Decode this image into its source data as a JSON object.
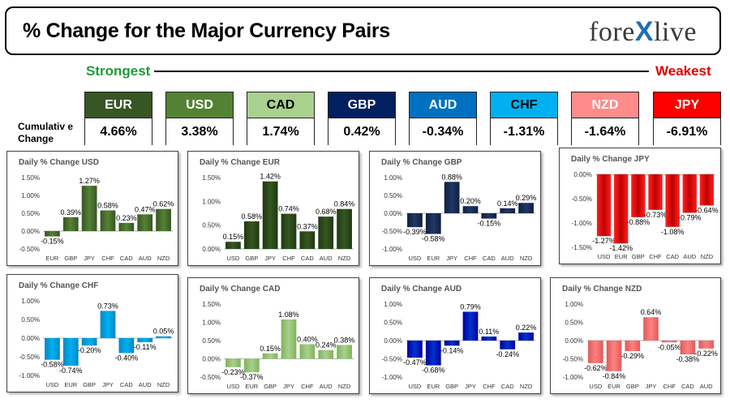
{
  "header": {
    "title": "% Change for the Major Currency Pairs",
    "logo_left": "fore",
    "logo_x": "X",
    "logo_right": "live"
  },
  "ranking": {
    "strongest_label": "Strongest",
    "weakest_label": "Weakest",
    "cumulative_label_line1": "Cumulativ e",
    "cumulative_label_line2": "Change",
    "currencies": [
      {
        "code": "EUR",
        "value": "4.66%",
        "color": "#375623",
        "text_color": "#ffffff"
      },
      {
        "code": "USD",
        "value": "3.38%",
        "color": "#548235",
        "text_color": "#ffffff"
      },
      {
        "code": "CAD",
        "value": "1.74%",
        "color": "#a9d08e",
        "text_color": "#000000"
      },
      {
        "code": "GBP",
        "value": "0.42%",
        "color": "#002060",
        "text_color": "#ffffff"
      },
      {
        "code": "AUD",
        "value": "-0.34%",
        "color": "#0070c0",
        "text_color": "#ffffff"
      },
      {
        "code": "CHF",
        "value": "-1.31%",
        "color": "#00b0f0",
        "text_color": "#000000"
      },
      {
        "code": "NZD",
        "value": "-1.64%",
        "color": "#ff8b8b",
        "text_color": "#ffffff"
      },
      {
        "code": "JPY",
        "value": "-6.91%",
        "color": "#ff0000",
        "text_color": "#ffffff"
      }
    ]
  },
  "chart_data": [
    {
      "type": "bar",
      "title": "Daily % Change USD",
      "categories": [
        "EUR",
        "GBP",
        "JPY",
        "CHF",
        "CAD",
        "AUD",
        "NZD"
      ],
      "values": [
        -0.15,
        0.39,
        1.27,
        0.58,
        0.23,
        0.47,
        0.62
      ],
      "labels": [
        "-0.15%",
        "0.39%",
        "1.27%",
        "0.58%",
        "0.23%",
        "0.47%",
        "0.62%"
      ],
      "ylim": [
        -0.5,
        1.5
      ],
      "ticks": [
        "-0.50%",
        "0.00%",
        "0.50%",
        "1.00%",
        "1.50%"
      ],
      "tick_values": [
        -0.5,
        0,
        0.5,
        1,
        1.5
      ],
      "color": "#548235",
      "color_light": "#375623",
      "color_dark": "#548235",
      "grid": false
    },
    {
      "type": "bar",
      "title": "Daily % Change EUR",
      "categories": [
        "USD",
        "GBP",
        "JPY",
        "CHF",
        "CAD",
        "AUD",
        "NZD"
      ],
      "values": [
        0.15,
        0.58,
        1.42,
        0.74,
        0.37,
        0.68,
        0.84
      ],
      "labels": [
        "0.15%",
        "0.58%",
        "1.42%",
        "0.74%",
        "0.37%",
        "0.68%",
        "0.84%"
      ],
      "ylim": [
        0,
        1.5
      ],
      "ticks": [
        "0.00%",
        "0.50%",
        "1.00%",
        "1.50%"
      ],
      "tick_values": [
        0,
        0.5,
        1,
        1.5
      ],
      "color": "#375623",
      "color_light": "#1e3a10",
      "color_dark": "#375623",
      "grid": false
    },
    {
      "type": "bar",
      "title": "Daily % Change GBP",
      "categories": [
        "USD",
        "EUR",
        "JPY",
        "CHF",
        "CAD",
        "AUD",
        "NZD"
      ],
      "values": [
        -0.39,
        -0.58,
        0.88,
        0.2,
        -0.15,
        0.14,
        0.29
      ],
      "labels": [
        "-0.39%",
        "-0.58%",
        "0.88%",
        "0.20%",
        "-0.15%",
        "0.14%",
        "0.29%"
      ],
      "ylim": [
        -1,
        1
      ],
      "ticks": [
        "-1.00%",
        "-0.50%",
        "0.00%",
        "0.50%",
        "1.00%"
      ],
      "tick_values": [
        -1,
        -0.5,
        0,
        0.5,
        1
      ],
      "color": "#203864",
      "color_light": "#0f1f40",
      "color_dark": "#203864",
      "grid": false
    },
    {
      "type": "bar",
      "title": "Daily % Change JPY",
      "categories": [
        "USD",
        "EUR",
        "GBP",
        "CHF",
        "CAD",
        "AUD",
        "NZD"
      ],
      "values": [
        -1.27,
        -1.42,
        -0.88,
        -0.73,
        -1.08,
        -0.79,
        -0.64
      ],
      "labels": [
        "-1.27%",
        "-1.42%",
        "-0.88%",
        "-0.73%",
        "-1.08%",
        "-0.79%",
        "-0.64%"
      ],
      "ylim": [
        -1.5,
        0
      ],
      "ticks": [
        "-1.50%",
        "-1.00%",
        "-0.50%",
        "0.00%"
      ],
      "tick_values": [
        -1.5,
        -1,
        -0.5,
        0
      ],
      "color": "#e00000",
      "color_light": "#ff2020",
      "color_dark": "#c00000",
      "grid": false
    },
    {
      "type": "bar",
      "title": "Daily % Change CHF",
      "categories": [
        "USD",
        "EUR",
        "GBP",
        "JPY",
        "CAD",
        "AUD",
        "NZD"
      ],
      "values": [
        -0.58,
        -0.74,
        -0.2,
        0.73,
        -0.4,
        -0.11,
        0.05
      ],
      "labels": [
        "-0.58%",
        "-0.74%",
        "-0.20%",
        "0.73%",
        "-0.40%",
        "-0.11%",
        "0.05%"
      ],
      "ylim": [
        -1,
        1
      ],
      "ticks": [
        "-1.00%",
        "-0.50%",
        "0.00%",
        "0.50%",
        "1.00%"
      ],
      "tick_values": [
        -1,
        -0.5,
        0,
        0.5,
        1
      ],
      "color": "#00b0f0",
      "color_light": "#0088c8",
      "color_dark": "#00b0f0",
      "grid": false
    },
    {
      "type": "bar",
      "title": "Daily % Change CAD",
      "categories": [
        "USD",
        "EUR",
        "GBP",
        "JPY",
        "CHF",
        "AUD",
        "NZD"
      ],
      "values": [
        -0.23,
        -0.37,
        0.15,
        1.08,
        0.4,
        0.24,
        0.38
      ],
      "labels": [
        "-0.23%",
        "-0.37%",
        "0.15%",
        "1.08%",
        "0.40%",
        "0.24%",
        "0.38%"
      ],
      "ylim": [
        -0.5,
        1.5
      ],
      "ticks": [
        "-0.50%",
        "0.00%",
        "0.50%",
        "1.00%",
        "1.50%"
      ],
      "tick_values": [
        -0.5,
        0,
        0.5,
        1,
        1.5
      ],
      "color": "#a9d08e",
      "color_light": "#7fb35a",
      "color_dark": "#a9d08e",
      "grid": false
    },
    {
      "type": "bar",
      "title": "Daily % Change AUD",
      "categories": [
        "USD",
        "EUR",
        "GBP",
        "JPY",
        "CHF",
        "CAD",
        "NZD"
      ],
      "values": [
        -0.47,
        -0.68,
        -0.14,
        0.79,
        0.11,
        -0.24,
        0.22
      ],
      "labels": [
        "-0.47%",
        "-0.68%",
        "-0.14%",
        "0.79%",
        "0.11%",
        "-0.24%",
        "0.22%"
      ],
      "ylim": [
        -1,
        1
      ],
      "ticks": [
        "-1.00%",
        "-0.50%",
        "0.00%",
        "0.50%",
        "1.00%"
      ],
      "tick_values": [
        -1,
        -0.5,
        0,
        0.5,
        1
      ],
      "color": "#0033cc",
      "color_light": "#0000a0",
      "color_dark": "#0033cc",
      "grid": false
    },
    {
      "type": "bar",
      "title": "Daily % Change NZD",
      "categories": [
        "USD",
        "EUR",
        "GBP",
        "JPY",
        "CHF",
        "CAD",
        "AUD"
      ],
      "values": [
        -0.62,
        -0.84,
        -0.29,
        0.64,
        -0.05,
        -0.38,
        -0.22
      ],
      "labels": [
        "-0.62%",
        "-0.84%",
        "-0.29%",
        "0.64%",
        "-0.05%",
        "-0.38%",
        "-0.22%"
      ],
      "ylim": [
        -1,
        1
      ],
      "ticks": [
        "-1.00%",
        "-0.50%",
        "0.00%",
        "0.50%",
        "1.00%"
      ],
      "tick_values": [
        -1,
        -0.5,
        0,
        0.5,
        1
      ],
      "color": "#ff8080",
      "color_light": "#e05a5a",
      "color_dark": "#ff8080",
      "grid": false
    }
  ]
}
